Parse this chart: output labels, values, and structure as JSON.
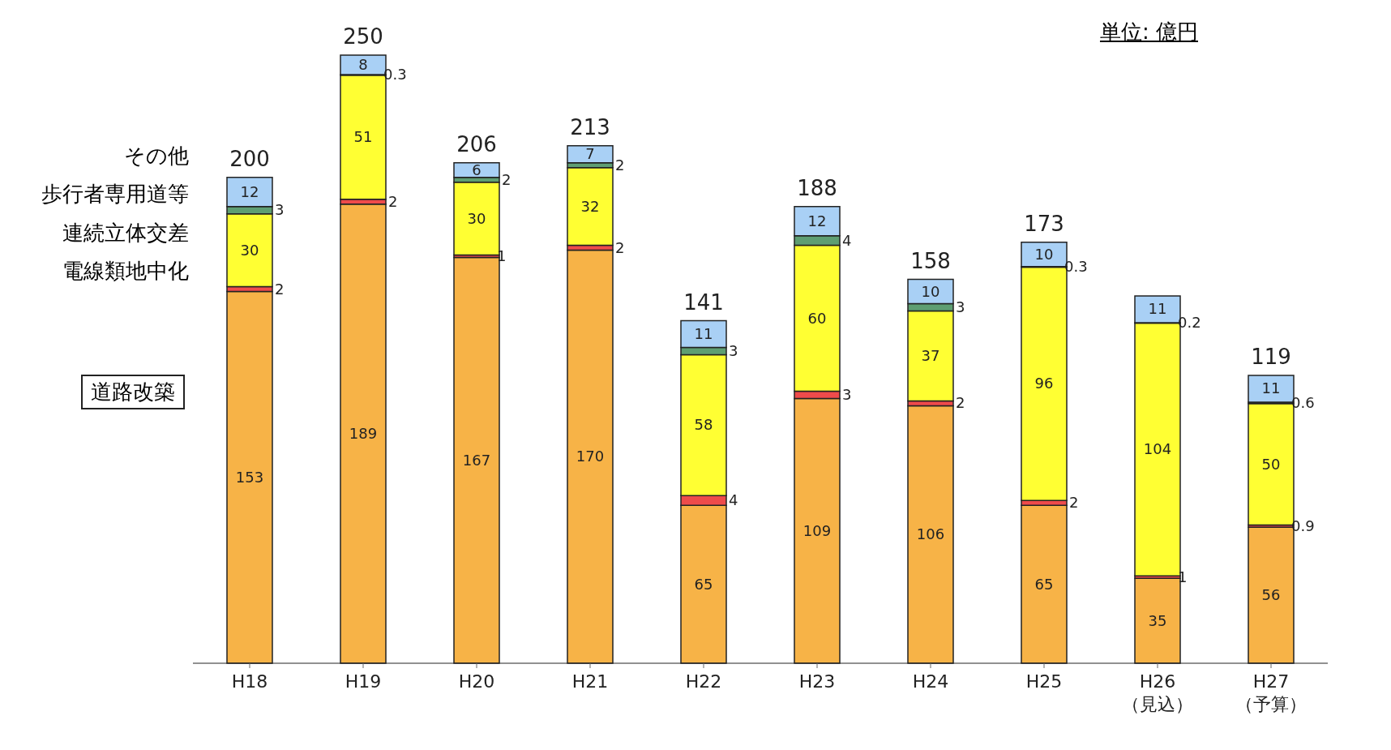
{
  "chart_data": {
    "type": "bar",
    "stacked": true,
    "data_labels": true,
    "legend": "left",
    "annotations": [
      "単位: 億円"
    ],
    "categories": [
      "H18",
      "H19",
      "H20",
      "H21",
      "H22",
      "H23",
      "H24",
      "H25",
      "H26\n（見込）",
      "H27\n（予算）"
    ],
    "series": [
      {
        "name": "道路改築",
        "color": "#f7b347",
        "values": [
          153,
          189,
          167,
          170,
          65,
          109,
          106,
          65,
          35,
          56
        ]
      },
      {
        "name": "電線類地中化",
        "color": "#ee4b4b",
        "values": [
          2,
          2,
          1,
          2,
          4,
          3,
          2,
          2,
          1,
          0.9
        ]
      },
      {
        "name": "連続立体交差",
        "color": "#ffff33",
        "values": [
          30,
          51,
          30,
          32,
          58,
          60,
          37,
          96,
          104,
          50
        ]
      },
      {
        "name": "歩行者専用道等",
        "color": "#5e9e72",
        "values": [
          3,
          0.3,
          2,
          2,
          3,
          4,
          3,
          0.3,
          0.2,
          0.6
        ]
      },
      {
        "name": "その他",
        "color": "#a9d0f5",
        "values": [
          12,
          8,
          6,
          7,
          11,
          12,
          10,
          10,
          11,
          11
        ]
      }
    ],
    "totals": [
      "200",
      "250",
      "206",
      "213",
      "141",
      "188",
      "158",
      "173",
      null,
      "119"
    ]
  }
}
